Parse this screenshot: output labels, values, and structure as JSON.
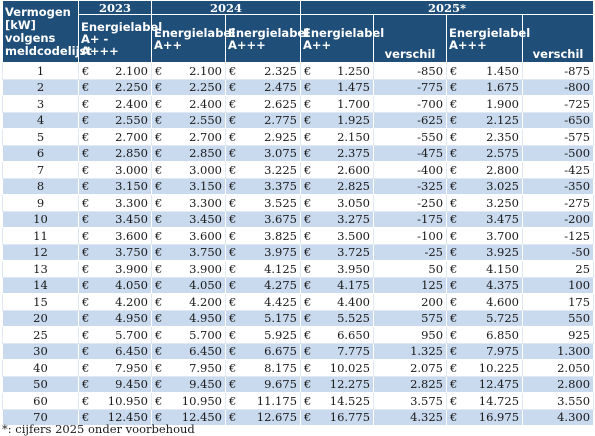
{
  "table": {
    "corner_label": "Vermogen [kW] volgens meldcodelijst",
    "years": [
      "2023",
      "2024",
      "2025*"
    ],
    "columns": [
      "Energielabel A+ - A+++",
      "Energielabel A++",
      "Energielabel A+++",
      "Energielabel A++",
      "verschil",
      "Energielabel A+++",
      "verschil"
    ],
    "currency": "€",
    "rows": [
      [
        "1",
        "2.100",
        "2.100",
        "2.325",
        "1.250",
        "-850",
        "1.450",
        "-875"
      ],
      [
        "2",
        "2.250",
        "2.250",
        "2.475",
        "1.475",
        "-775",
        "1.675",
        "-800"
      ],
      [
        "3",
        "2.400",
        "2.400",
        "2.625",
        "1.700",
        "-700",
        "1.900",
        "-725"
      ],
      [
        "4",
        "2.550",
        "2.550",
        "2.775",
        "1.925",
        "-625",
        "2.125",
        "-650"
      ],
      [
        "5",
        "2.700",
        "2.700",
        "2.925",
        "2.150",
        "-550",
        "2.350",
        "-575"
      ],
      [
        "6",
        "2.850",
        "2.850",
        "3.075",
        "2.375",
        "-475",
        "2.575",
        "-500"
      ],
      [
        "7",
        "3.000",
        "3.000",
        "3.225",
        "2.600",
        "-400",
        "2.800",
        "-425"
      ],
      [
        "8",
        "3.150",
        "3.150",
        "3.375",
        "2.825",
        "-325",
        "3.025",
        "-350"
      ],
      [
        "9",
        "3.300",
        "3.300",
        "3.525",
        "3.050",
        "-250",
        "3.250",
        "-275"
      ],
      [
        "10",
        "3.450",
        "3.450",
        "3.675",
        "3.275",
        "-175",
        "3.475",
        "-200"
      ],
      [
        "11",
        "3.600",
        "3.600",
        "3.825",
        "3.500",
        "-100",
        "3.700",
        "-125"
      ],
      [
        "12",
        "3.750",
        "3.750",
        "3.975",
        "3.725",
        "-25",
        "3.925",
        "-50"
      ],
      [
        "13",
        "3.900",
        "3.900",
        "4.125",
        "3.950",
        "50",
        "4.150",
        "25"
      ],
      [
        "14",
        "4.050",
        "4.050",
        "4.275",
        "4.175",
        "125",
        "4.375",
        "100"
      ],
      [
        "15",
        "4.200",
        "4.200",
        "4.425",
        "4.400",
        "200",
        "4.600",
        "175"
      ],
      [
        "20",
        "4.950",
        "4.950",
        "5.175",
        "5.525",
        "575",
        "5.725",
        "550"
      ],
      [
        "25",
        "5.700",
        "5.700",
        "5.925",
        "6.650",
        "950",
        "6.850",
        "925"
      ],
      [
        "30",
        "6.450",
        "6.450",
        "6.675",
        "7.775",
        "1.325",
        "7.975",
        "1.300"
      ],
      [
        "40",
        "7.950",
        "7.950",
        "8.175",
        "10.025",
        "2.075",
        "10.225",
        "2.050"
      ],
      [
        "50",
        "9.450",
        "9.450",
        "9.675",
        "12.275",
        "2.825",
        "12.475",
        "2.800"
      ],
      [
        "60",
        "10.950",
        "10.950",
        "11.175",
        "14.525",
        "3.575",
        "14.725",
        "3.550"
      ],
      [
        "70",
        "12.450",
        "12.450",
        "12.675",
        "16.775",
        "4.325",
        "16.975",
        "4.300"
      ]
    ]
  },
  "footnote": "*: cijfers 2025 onder voorbehoud"
}
